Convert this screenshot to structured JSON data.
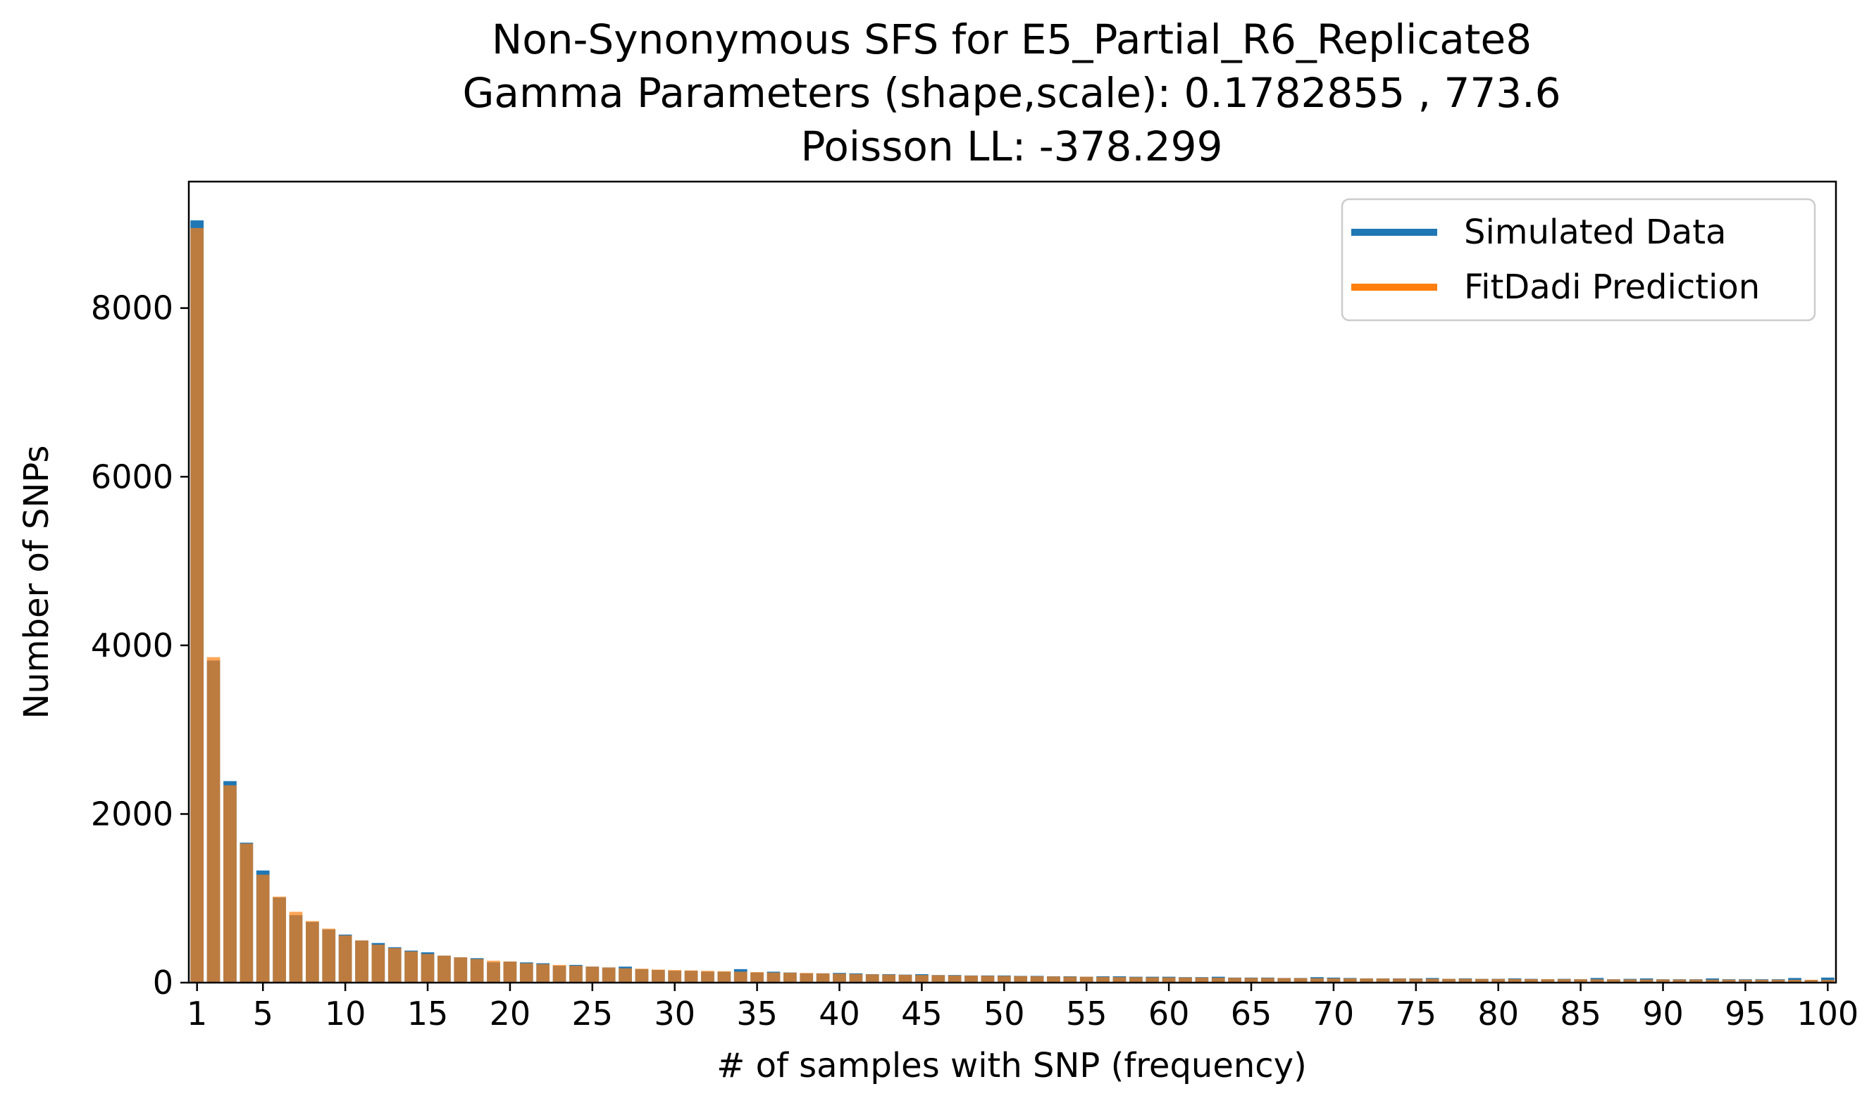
{
  "chart_data": {
    "type": "bar",
    "title_lines": [
      "Non-Synonymous SFS for E5_Partial_R6_Replicate8",
      "Gamma Parameters (shape,scale): 0.1782855 , 773.6",
      "Poisson LL: -378.299"
    ],
    "xlabel": "# of samples with SNP (frequency)",
    "ylabel": "Number of SNPs",
    "x_ticks": [
      1,
      5,
      10,
      15,
      20,
      25,
      30,
      35,
      40,
      45,
      50,
      55,
      60,
      65,
      70,
      75,
      80,
      85,
      90,
      95,
      100
    ],
    "y_ticks": [
      0,
      2000,
      4000,
      6000,
      8000
    ],
    "xlim": [
      0.5,
      100.5
    ],
    "ylim": [
      0,
      9500
    ],
    "legend_position": "top-right",
    "categories": [
      1,
      2,
      3,
      4,
      5,
      6,
      7,
      8,
      9,
      10,
      11,
      12,
      13,
      14,
      15,
      16,
      17,
      18,
      19,
      20,
      21,
      22,
      23,
      24,
      25,
      26,
      27,
      28,
      29,
      30,
      31,
      32,
      33,
      34,
      35,
      36,
      37,
      38,
      39,
      40,
      41,
      42,
      43,
      44,
      45,
      46,
      47,
      48,
      49,
      50,
      51,
      52,
      53,
      54,
      55,
      56,
      57,
      58,
      59,
      60,
      61,
      62,
      63,
      64,
      65,
      66,
      67,
      68,
      69,
      70,
      71,
      72,
      73,
      74,
      75,
      76,
      77,
      78,
      79,
      80,
      81,
      82,
      83,
      84,
      85,
      86,
      87,
      88,
      89,
      90,
      91,
      92,
      93,
      94,
      95,
      96,
      97,
      98,
      99,
      100
    ],
    "series": [
      {
        "name": "Simulated Data",
        "color": "#1f77b4",
        "values": [
          9040,
          3820,
          2390,
          1660,
          1330,
          1010,
          800,
          720,
          630,
          570,
          500,
          470,
          420,
          380,
          360,
          320,
          300,
          290,
          240,
          250,
          240,
          230,
          200,
          210,
          190,
          180,
          190,
          160,
          150,
          140,
          140,
          130,
          130,
          160,
          120,
          130,
          120,
          110,
          110,
          115,
          110,
          100,
          100,
          95,
          100,
          90,
          90,
          85,
          85,
          85,
          80,
          80,
          75,
          75,
          70,
          75,
          75,
          70,
          70,
          70,
          65,
          65,
          70,
          60,
          60,
          60,
          55,
          55,
          65,
          60,
          55,
          50,
          50,
          50,
          50,
          55,
          45,
          50,
          45,
          45,
          50,
          45,
          40,
          45,
          40,
          55,
          40,
          45,
          50,
          40,
          40,
          40,
          50,
          40,
          40,
          40,
          40,
          55,
          30,
          60
        ]
      },
      {
        "name": "FitDadi Prediction",
        "color": "#ff7f0e",
        "values": [
          8950,
          3860,
          2340,
          1650,
          1280,
          1020,
          840,
          730,
          640,
          560,
          500,
          450,
          410,
          370,
          340,
          320,
          300,
          280,
          260,
          250,
          230,
          220,
          210,
          200,
          190,
          180,
          170,
          165,
          155,
          150,
          145,
          140,
          135,
          130,
          125,
          120,
          118,
          115,
          110,
          106,
          102,
          98,
          95,
          92,
          90,
          88,
          85,
          83,
          81,
          79,
          77,
          75,
          73,
          71,
          70,
          68,
          66,
          65,
          63,
          62,
          61,
          60,
          58,
          57,
          56,
          55,
          54,
          53,
          52,
          51,
          50,
          49,
          49,
          48,
          47,
          46,
          45,
          45,
          44,
          43,
          43,
          42,
          41,
          41,
          40,
          40,
          39,
          39,
          38,
          38,
          37,
          37,
          36,
          36,
          35,
          35,
          35,
          34,
          34,
          33
        ]
      }
    ]
  }
}
